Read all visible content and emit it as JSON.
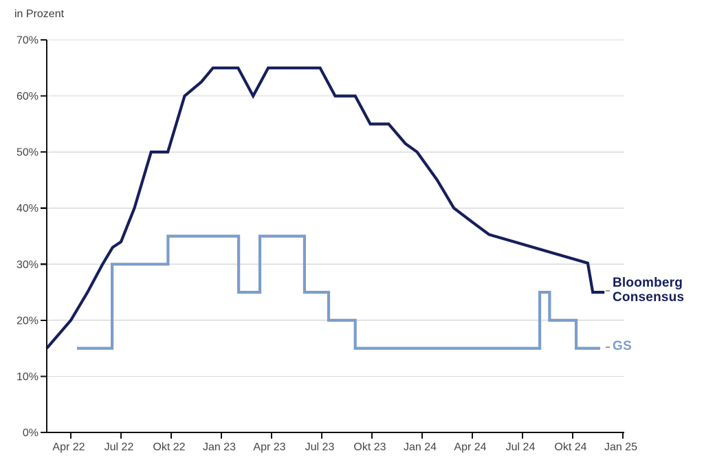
{
  "title": "in Prozent",
  "legend": {
    "bloomberg_line1": "Bloomberg",
    "bloomberg_line2": "Consensus",
    "gs": "GS"
  },
  "colors": {
    "bloomberg_line": "#161f5c",
    "gs_line": "#7c9dcb",
    "grid": "#d9d9d9",
    "axis": "#111111",
    "tick_text": "#454545",
    "leader_dash": "#9a9a9a"
  },
  "chart_data": {
    "type": "line",
    "title": "in Prozent",
    "xlabel": "",
    "ylabel": "in Prozent",
    "x_unit": "months since Apr 2022",
    "x_ticks": [
      {
        "t": 0,
        "label": "Apr 22"
      },
      {
        "t": 3,
        "label": "Jul 22"
      },
      {
        "t": 6,
        "label": "Okt 22"
      },
      {
        "t": 9,
        "label": "Jan 23"
      },
      {
        "t": 12,
        "label": "Apr 23"
      },
      {
        "t": 15,
        "label": "Jul 23"
      },
      {
        "t": 18,
        "label": "Okt 23"
      },
      {
        "t": 21,
        "label": "Jan 24"
      },
      {
        "t": 24,
        "label": "Apr 24"
      },
      {
        "t": 27,
        "label": "Jul 24"
      },
      {
        "t": 30,
        "label": "Okt 24"
      },
      {
        "t": 33,
        "label": "Jan 25"
      }
    ],
    "ylim": [
      0,
      70
    ],
    "y_ticks": [
      0,
      10,
      20,
      30,
      40,
      50,
      60,
      70
    ],
    "y_tick_format": "percent",
    "grid": "horizontal",
    "legend_position": "right-of-line-end",
    "series": [
      {
        "name": "Bloomberg Consensus",
        "color": "#161f5c",
        "interpolation": "linear",
        "points": [
          [
            -1.44,
            15
          ],
          [
            0,
            20
          ],
          [
            1,
            25
          ],
          [
            1.9,
            30
          ],
          [
            2.5,
            33
          ],
          [
            3,
            34
          ],
          [
            3.8,
            40
          ],
          [
            4.8,
            50
          ],
          [
            5.8,
            50
          ],
          [
            6.8,
            60
          ],
          [
            7.8,
            62.5
          ],
          [
            8.5,
            65
          ],
          [
            10,
            65
          ],
          [
            10.9,
            60
          ],
          [
            11.8,
            65
          ],
          [
            14.9,
            65
          ],
          [
            15.8,
            60
          ],
          [
            17,
            60
          ],
          [
            17.9,
            55
          ],
          [
            19,
            55
          ],
          [
            20,
            51.5
          ],
          [
            20.7,
            50
          ],
          [
            21.9,
            45
          ],
          [
            22.9,
            40
          ],
          [
            24,
            37.5
          ],
          [
            25,
            35.3
          ],
          [
            30.9,
            30.2
          ],
          [
            31.2,
            25
          ],
          [
            31.9,
            25
          ]
        ]
      },
      {
        "name": "GS",
        "color": "#7c9dcb",
        "interpolation": "step",
        "points": [
          [
            0.37,
            15
          ],
          [
            2.47,
            15
          ],
          [
            2.47,
            30
          ],
          [
            5.81,
            30
          ],
          [
            5.81,
            35
          ],
          [
            10.03,
            35
          ],
          [
            10.03,
            25
          ],
          [
            11.3,
            25
          ],
          [
            11.3,
            35
          ],
          [
            13.97,
            35
          ],
          [
            13.97,
            25
          ],
          [
            15.41,
            25
          ],
          [
            15.41,
            20
          ],
          [
            17.0,
            20
          ],
          [
            17.0,
            15
          ],
          [
            28.03,
            15
          ],
          [
            28.03,
            25
          ],
          [
            28.62,
            25
          ],
          [
            28.62,
            20
          ],
          [
            30.21,
            20
          ],
          [
            30.21,
            15
          ],
          [
            31.65,
            15
          ]
        ]
      }
    ]
  }
}
